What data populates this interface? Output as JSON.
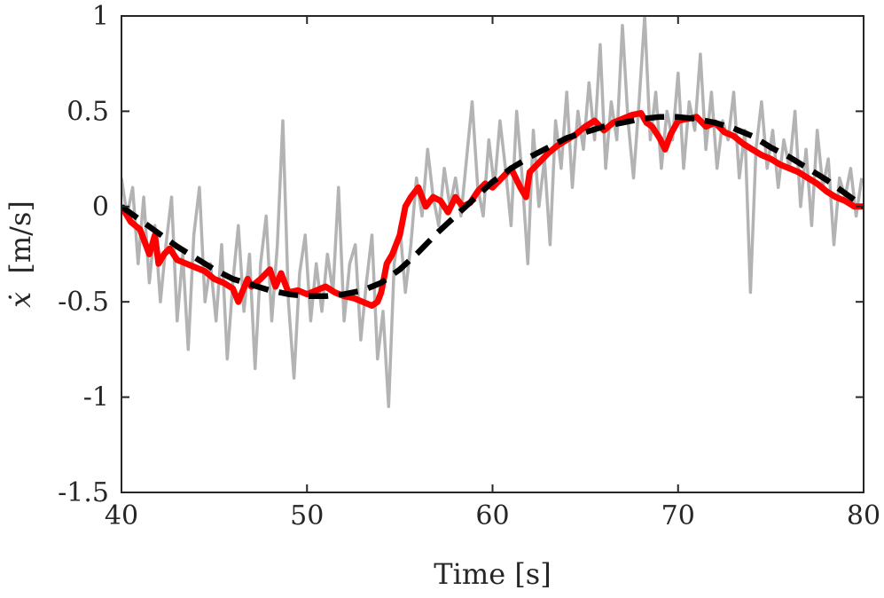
{
  "chart_data": {
    "type": "line",
    "title": "",
    "xlabel": "Time [s]",
    "ylabel_symbol": "ẋ",
    "ylabel_unit": "[m/s]",
    "xlim": [
      40,
      80
    ],
    "ylim": [
      -1.5,
      1
    ],
    "xticks": [
      {
        "value": 40,
        "label": "40"
      },
      {
        "value": 50,
        "label": "50"
      },
      {
        "value": 60,
        "label": "60"
      },
      {
        "value": 70,
        "label": "70"
      },
      {
        "value": 80,
        "label": "80"
      }
    ],
    "yticks": [
      {
        "value": -1.5,
        "label": "-1.5"
      },
      {
        "value": -1,
        "label": "-1"
      },
      {
        "value": -0.5,
        "label": "-0.5"
      },
      {
        "value": 0,
        "label": "0"
      },
      {
        "value": 0.5,
        "label": "0.5"
      },
      {
        "value": 1,
        "label": "1"
      }
    ],
    "grid": false,
    "legend": false,
    "series": [
      {
        "style": "solid",
        "color": "#b3b3b3",
        "width": 3.5,
        "x": [
          40.0,
          40.3,
          40.6,
          40.9,
          41.2,
          41.5,
          41.8,
          42.1,
          42.4,
          42.7,
          43.0,
          43.3,
          43.6,
          43.9,
          44.2,
          44.5,
          44.8,
          45.1,
          45.4,
          45.7,
          46.0,
          46.3,
          46.6,
          46.9,
          47.2,
          47.5,
          47.8,
          48.1,
          48.4,
          48.7,
          49.0,
          49.3,
          49.6,
          49.9,
          50.2,
          50.5,
          50.8,
          51.1,
          51.4,
          51.7,
          52.0,
          52.3,
          52.6,
          52.9,
          53.2,
          53.5,
          53.8,
          54.1,
          54.4,
          54.7,
          55.0,
          55.3,
          55.6,
          55.9,
          56.2,
          56.5,
          56.8,
          57.1,
          57.4,
          57.7,
          58.0,
          58.3,
          58.6,
          58.9,
          59.2,
          59.5,
          59.8,
          60.1,
          60.4,
          60.7,
          61.0,
          61.3,
          61.6,
          61.9,
          62.2,
          62.5,
          62.8,
          63.1,
          63.4,
          63.7,
          64.0,
          64.3,
          64.6,
          64.9,
          65.2,
          65.5,
          65.8,
          66.1,
          66.4,
          66.7,
          67.0,
          67.3,
          67.6,
          67.9,
          68.2,
          68.5,
          68.8,
          69.1,
          69.4,
          69.7,
          70.0,
          70.3,
          70.6,
          70.9,
          71.2,
          71.5,
          71.8,
          72.1,
          72.4,
          72.7,
          73.0,
          73.3,
          73.6,
          73.9,
          74.2,
          74.5,
          74.8,
          75.1,
          75.4,
          75.7,
          76.0,
          76.3,
          76.6,
          76.9,
          77.2,
          77.5,
          77.8,
          78.1,
          78.4,
          78.7,
          79.0,
          79.3,
          79.6,
          79.9
        ],
        "y": [
          0.15,
          -0.05,
          0.1,
          -0.3,
          0.05,
          -0.4,
          -0.1,
          -0.5,
          -0.2,
          0.05,
          -0.6,
          -0.25,
          -0.75,
          -0.15,
          0.1,
          -0.5,
          -0.3,
          -0.6,
          -0.2,
          -0.8,
          -0.4,
          -0.1,
          -0.55,
          -0.25,
          -0.85,
          -0.3,
          -0.05,
          -0.6,
          -0.2,
          0.45,
          -0.5,
          -0.9,
          -0.35,
          -0.15,
          -0.6,
          -0.3,
          -0.55,
          -0.25,
          -0.45,
          0.1,
          -0.6,
          -0.3,
          -0.2,
          -0.7,
          -0.4,
          -0.15,
          -0.8,
          -0.55,
          -1.05,
          -0.3,
          -0.1,
          -0.45,
          -0.2,
          0.15,
          -0.05,
          0.3,
          0.05,
          -0.1,
          0.2,
          0.0,
          0.15,
          -0.05,
          0.25,
          0.55,
          0.1,
          -0.05,
          0.35,
          0.1,
          0.45,
          0.2,
          -0.1,
          0.5,
          0.15,
          -0.3,
          0.4,
          0.0,
          0.25,
          -0.2,
          0.45,
          0.2,
          0.6,
          0.1,
          0.5,
          0.3,
          0.65,
          0.35,
          0.85,
          0.2,
          0.55,
          0.35,
          0.95,
          0.45,
          0.15,
          0.55,
          1.0,
          0.35,
          0.6,
          0.2,
          0.5,
          0.35,
          0.7,
          0.2,
          0.55,
          0.4,
          0.8,
          0.3,
          0.6,
          0.2,
          0.45,
          0.35,
          0.6,
          0.15,
          0.4,
          -0.45,
          0.3,
          0.55,
          0.2,
          0.4,
          0.1,
          0.35,
          0.2,
          0.5,
          0.0,
          0.3,
          -0.1,
          0.4,
          0.1,
          0.25,
          -0.2,
          0.15,
          0.05,
          0.2,
          -0.05,
          0.15
        ]
      },
      {
        "style": "solid",
        "color": "#ff0000",
        "width": 7,
        "x": [
          40.0,
          40.5,
          41.0,
          41.5,
          41.8,
          42.0,
          42.3,
          42.6,
          43.0,
          43.5,
          44.0,
          44.5,
          45.0,
          45.5,
          46.0,
          46.3,
          46.5,
          46.8,
          47.0,
          47.5,
          48.0,
          48.3,
          48.6,
          49.0,
          49.5,
          50.0,
          50.5,
          51.0,
          51.5,
          52.0,
          52.5,
          53.0,
          53.5,
          53.8,
          54.0,
          54.3,
          54.6,
          55.0,
          55.3,
          55.6,
          56.0,
          56.4,
          56.8,
          57.2,
          57.6,
          58.0,
          58.4,
          58.8,
          59.2,
          59.6,
          60.0,
          60.5,
          61.0,
          61.5,
          61.8,
          62.0,
          62.5,
          63.0,
          63.5,
          64.0,
          64.5,
          65.0,
          65.5,
          66.0,
          66.5,
          67.0,
          67.5,
          68.0,
          68.3,
          68.6,
          69.0,
          69.3,
          69.6,
          70.0,
          70.5,
          71.0,
          71.5,
          72.0,
          72.5,
          73.0,
          73.5,
          74.0,
          74.5,
          75.0,
          75.5,
          76.0,
          76.5,
          77.0,
          77.5,
          78.0,
          78.5,
          79.0,
          79.5,
          80.0
        ],
        "y": [
          0.0,
          -0.08,
          -0.12,
          -0.25,
          -0.15,
          -0.3,
          -0.25,
          -0.22,
          -0.28,
          -0.3,
          -0.32,
          -0.34,
          -0.38,
          -0.4,
          -0.43,
          -0.5,
          -0.45,
          -0.38,
          -0.42,
          -0.38,
          -0.33,
          -0.42,
          -0.35,
          -0.45,
          -0.44,
          -0.46,
          -0.44,
          -0.42,
          -0.45,
          -0.47,
          -0.48,
          -0.5,
          -0.52,
          -0.5,
          -0.45,
          -0.3,
          -0.25,
          -0.15,
          0.0,
          0.05,
          0.1,
          0.0,
          0.05,
          0.03,
          -0.03,
          0.05,
          0.0,
          0.02,
          0.08,
          0.12,
          0.1,
          0.15,
          0.2,
          0.1,
          0.05,
          0.18,
          0.23,
          0.28,
          0.32,
          0.35,
          0.38,
          0.42,
          0.45,
          0.4,
          0.44,
          0.46,
          0.48,
          0.49,
          0.44,
          0.42,
          0.36,
          0.3,
          0.38,
          0.45,
          0.46,
          0.47,
          0.42,
          0.44,
          0.39,
          0.37,
          0.33,
          0.3,
          0.27,
          0.25,
          0.22,
          0.2,
          0.18,
          0.15,
          0.12,
          0.08,
          0.05,
          0.03,
          0.0,
          0.0
        ]
      },
      {
        "style": "dashed",
        "color": "#000000",
        "width": 6.5,
        "x": [
          40,
          41,
          42,
          43,
          44,
          45,
          46,
          47,
          48,
          49,
          50,
          51,
          52,
          53,
          54,
          55,
          56,
          57,
          58,
          59,
          60,
          61,
          62,
          63,
          64,
          65,
          66,
          67,
          68,
          69,
          70,
          71,
          72,
          73,
          74,
          75,
          76,
          77,
          78,
          79,
          80
        ],
        "y": [
          0.0,
          -0.07,
          -0.14,
          -0.21,
          -0.27,
          -0.33,
          -0.38,
          -0.41,
          -0.44,
          -0.46,
          -0.47,
          -0.47,
          -0.46,
          -0.44,
          -0.4,
          -0.33,
          -0.24,
          -0.14,
          -0.05,
          0.04,
          0.13,
          0.2,
          0.26,
          0.31,
          0.36,
          0.39,
          0.42,
          0.44,
          0.46,
          0.47,
          0.47,
          0.46,
          0.44,
          0.41,
          0.37,
          0.31,
          0.26,
          0.2,
          0.14,
          0.07,
          0.0
        ]
      }
    ]
  }
}
